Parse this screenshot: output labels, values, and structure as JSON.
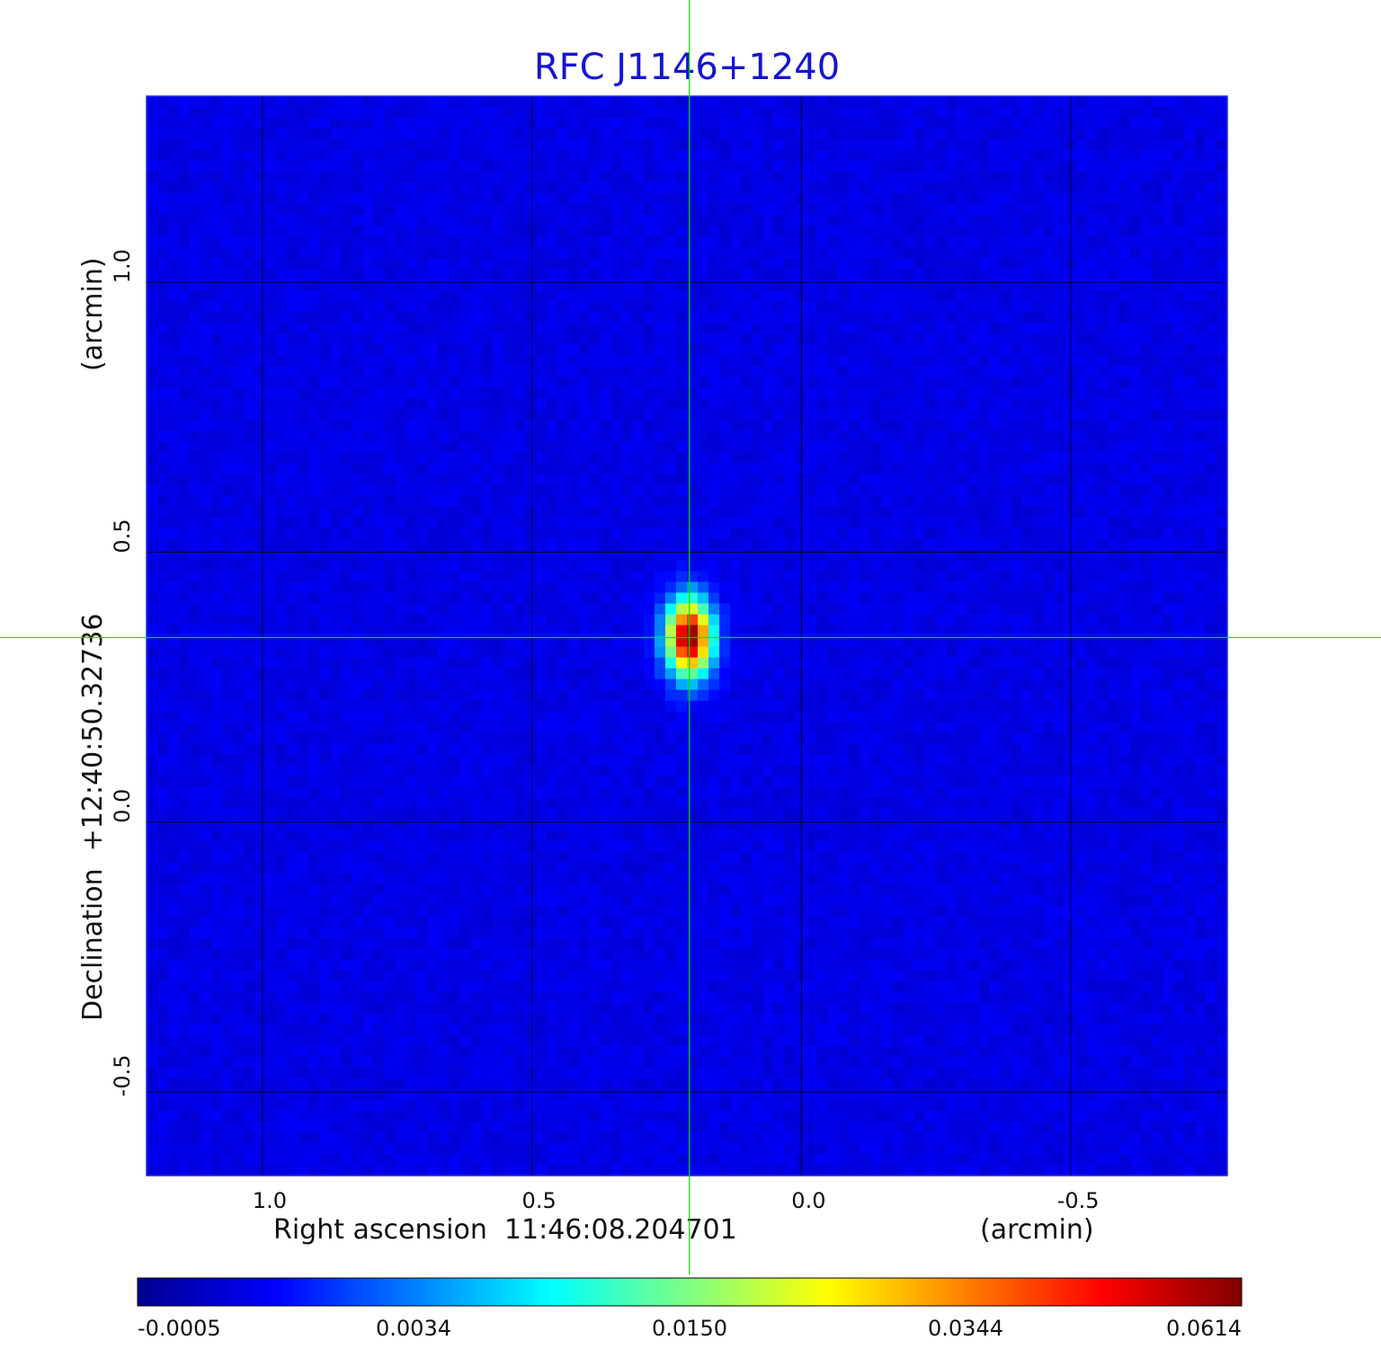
{
  "chart_data": {
    "type": "heatmap",
    "title": "RFC J1146+1240",
    "xlabel": "Right ascension  11:46:08.204701",
    "xunit": "(arcmin)",
    "ylabel": "Declination  +12:40:50.32736",
    "yunit": "(arcmin)",
    "x_ticks": [
      {
        "value": 1.0,
        "label": "1.0"
      },
      {
        "value": 0.5,
        "label": "0.5"
      },
      {
        "value": 0.0,
        "label": "0.0"
      },
      {
        "value": -0.5,
        "label": "-0.5"
      }
    ],
    "y_ticks": [
      {
        "value": 1.0,
        "label": "1.0"
      },
      {
        "value": 0.5,
        "label": "0.5"
      },
      {
        "value": 0.0,
        "label": "0.0"
      },
      {
        "value": -0.5,
        "label": "-0.5"
      }
    ],
    "xlim": [
      1.215,
      -0.79
    ],
    "ylim": [
      -0.655,
      1.345
    ],
    "x_axis_reversed": true,
    "grid": true,
    "crosshair": {
      "x": 0.208,
      "y": 0.342,
      "color": "#00dd00"
    },
    "source": {
      "x": 0.208,
      "y": 0.342,
      "peak": 0.0614
    },
    "colorbar": {
      "position": "bottom",
      "ticks": [
        {
          "value": -0.0005,
          "label": "-0.0005"
        },
        {
          "value": 0.0034,
          "label": "0.0034"
        },
        {
          "value": 0.015,
          "label": "0.0150"
        },
        {
          "value": 0.0344,
          "label": "0.0344"
        },
        {
          "value": 0.0614,
          "label": "0.0614"
        }
      ],
      "colormap": "jet"
    },
    "colors": {
      "title": "#1414d2",
      "background_field": "#1a30f0",
      "crosshair": "#00dd00",
      "grid": "#000000"
    }
  }
}
